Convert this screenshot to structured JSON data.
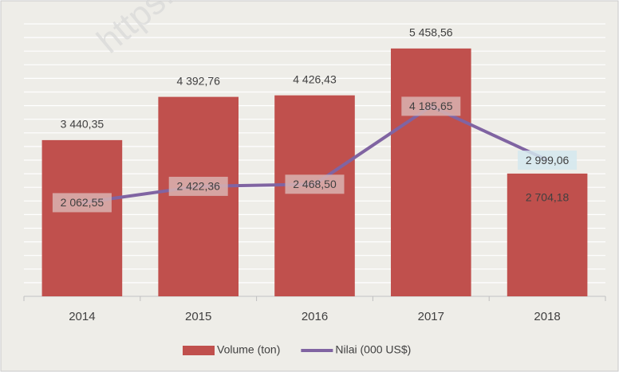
{
  "chart_data": {
    "type": "bar",
    "watermark": "https://ben",
    "categories": [
      "2014",
      "2015",
      "2016",
      "2017",
      "2018"
    ],
    "series": [
      {
        "name": "Volume (ton)",
        "type": "bar",
        "color": "#c0504d",
        "values": [
          3440.35,
          4392.76,
          4426.43,
          5458.56,
          2704.18
        ],
        "value_labels": [
          "3 440,35",
          "4 392,76",
          "4 426,43",
          "5 458,56",
          "2 704,18"
        ]
      },
      {
        "name": "Nilai (000 US$)",
        "type": "line",
        "color": "#8064a2",
        "values": [
          2062.55,
          2422.36,
          2468.5,
          4185.65,
          2999.06
        ],
        "value_labels": [
          "2 062,55",
          "2 422,36",
          "2 468,50",
          "4 185,65",
          "2 999,06"
        ]
      }
    ],
    "ylim": [
      0,
      6000
    ],
    "yticks": [
      0,
      300,
      600,
      900,
      1200,
      1500,
      1800,
      2100,
      2400,
      2700,
      3000,
      3300,
      3600,
      3900,
      4200,
      4500,
      4800,
      5100,
      5400,
      5700,
      6000
    ],
    "grid": true,
    "legend": "bottom"
  }
}
